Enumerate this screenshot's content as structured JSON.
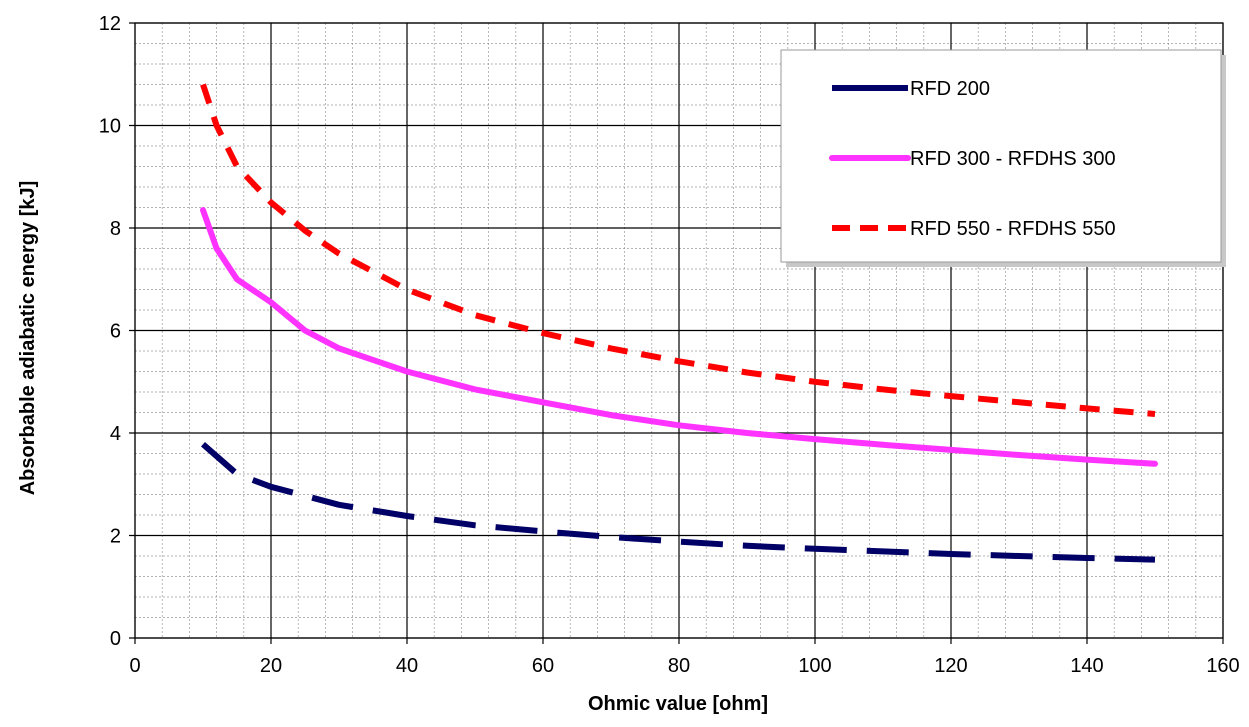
{
  "chart_data": {
    "type": "line",
    "title": "",
    "xlabel": "Ohmic value [ohm]",
    "ylabel": "Absorbable adiabatic energy [kJ]",
    "xlim": [
      0,
      160
    ],
    "ylim": [
      0,
      12
    ],
    "x_ticks": [
      0,
      20,
      40,
      60,
      80,
      100,
      120,
      140,
      160
    ],
    "y_ticks": [
      0,
      2,
      4,
      6,
      8,
      10,
      12
    ],
    "x_minor_step": 4,
    "y_minor_step": 0.4,
    "grid": true,
    "legend_position": "top-right",
    "series": [
      {
        "name": "RFD 200",
        "color": "#000066",
        "style": "long-dash",
        "x": [
          10,
          15,
          20,
          30,
          40,
          50,
          60,
          70,
          80,
          90,
          100,
          110,
          120,
          130,
          140,
          150
        ],
        "y": [
          3.78,
          3.2,
          2.95,
          2.6,
          2.38,
          2.2,
          2.08,
          1.97,
          1.88,
          1.8,
          1.74,
          1.69,
          1.64,
          1.6,
          1.56,
          1.53
        ]
      },
      {
        "name": "RFD 300 - RFDHS 300",
        "color": "#ff33ff",
        "style": "solid",
        "x": [
          10,
          12,
          15,
          20,
          25,
          30,
          40,
          50,
          60,
          70,
          80,
          90,
          100,
          110,
          120,
          130,
          140,
          150
        ],
        "y": [
          8.35,
          7.6,
          7.0,
          6.55,
          6.0,
          5.65,
          5.2,
          4.85,
          4.6,
          4.35,
          4.15,
          4.0,
          3.88,
          3.77,
          3.67,
          3.57,
          3.48,
          3.4
        ]
      },
      {
        "name": "RFD 550 - RFDHS 550",
        "color": "#ff0000",
        "style": "dash",
        "x": [
          10,
          12,
          15,
          20,
          25,
          30,
          40,
          50,
          60,
          70,
          80,
          90,
          100,
          110,
          120,
          130,
          140,
          150
        ],
        "y": [
          10.8,
          10.0,
          9.2,
          8.5,
          7.95,
          7.5,
          6.8,
          6.3,
          5.95,
          5.65,
          5.4,
          5.18,
          5.0,
          4.85,
          4.72,
          4.6,
          4.48,
          4.37
        ]
      }
    ]
  }
}
